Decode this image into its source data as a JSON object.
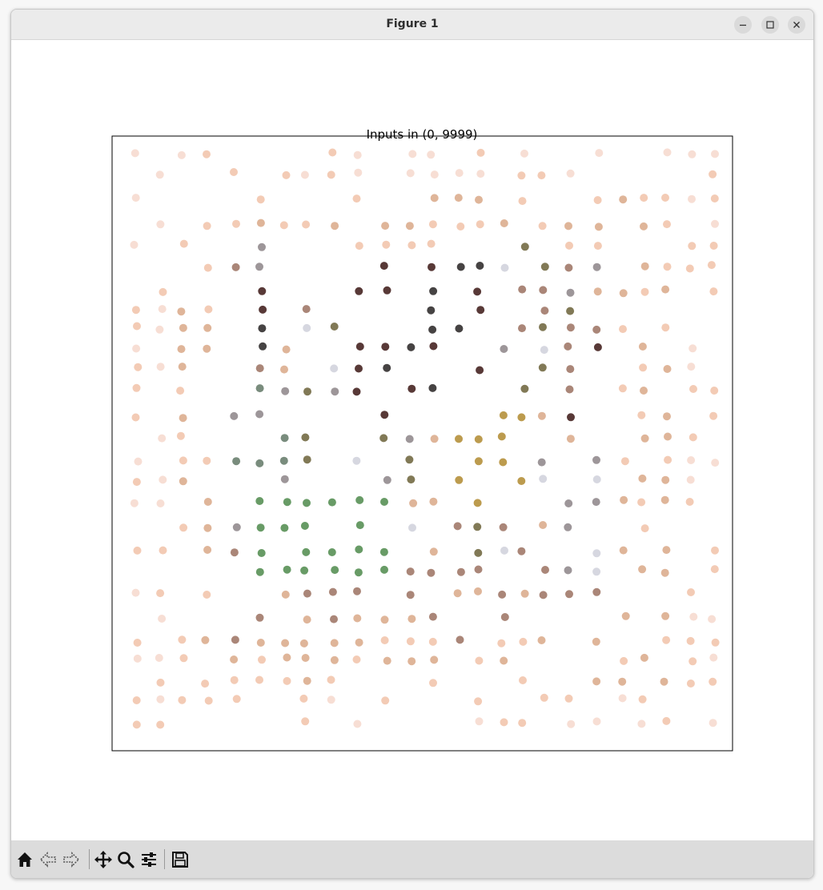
{
  "window": {
    "title": "Figure 1"
  },
  "controls": {
    "minimize_icon": "minimize-icon",
    "maximize_icon": "maximize-icon",
    "close_icon": "close-icon"
  },
  "toolbar": {
    "items": [
      "home-icon",
      "back-arrow-icon",
      "forward-arrow-icon",
      "pan-move-icon",
      "zoom-magnifier-icon",
      "configure-subplots-icon",
      "save-floppy-icon"
    ]
  },
  "chart_data": {
    "type": "scatter",
    "title": "Inputs in (0, 9999)",
    "xlabel": "",
    "ylabel": "",
    "axes_ticks": "none",
    "grid": false,
    "legend": "none",
    "colors": {
      "pale_peach": "#f6d8cc",
      "peach": "#f1c2a8",
      "tan": "#d9a887",
      "brown": "#9b7160",
      "dark_maroon": "#3b1614",
      "near_black": "#262222",
      "gray": "#8c8487",
      "pale_gray": "#cfd0da",
      "sage_green": "#627866",
      "green": "#4e8a4b",
      "ochre": "#b08a2f",
      "olive": "#6b6238"
    },
    "note_colors_vary_per_point": true
  }
}
